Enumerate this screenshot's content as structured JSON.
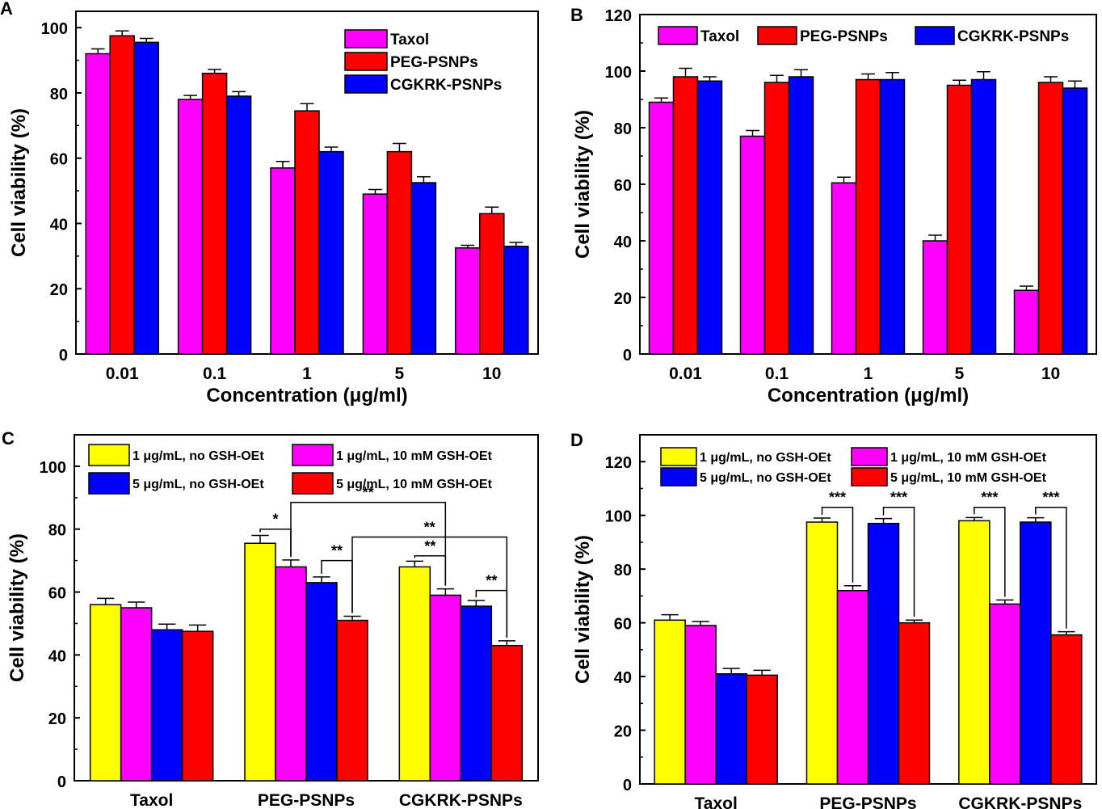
{
  "colors": {
    "taxol": "#ff00ff",
    "peg": "#ff0000",
    "cgkrk": "#0000ff",
    "yellow": "#ffff00",
    "magenta": "#ff00ff",
    "blue": "#0000ff",
    "red": "#ff0000"
  },
  "chart_data": [
    {
      "panel": "A",
      "type": "bar",
      "title": "",
      "xlabel": "Concentration (μg/ml)",
      "ylabel": "Cell viability (%)",
      "ylim": [
        0,
        105
      ],
      "yticks": [
        0,
        20,
        40,
        60,
        80,
        100
      ],
      "legend_position": "top-right",
      "legend_layout": "column",
      "categories": [
        "0.01",
        "0.1",
        "1",
        "5",
        "10"
      ],
      "series": [
        {
          "name": "Taxol",
          "color": "#ff00ff",
          "values": [
            92,
            78,
            57,
            49,
            32.5
          ],
          "errors": [
            1.5,
            1.2,
            2.0,
            1.4,
            0.8
          ]
        },
        {
          "name": "PEG-PSNPs",
          "color": "#ff0000",
          "values": [
            97.5,
            86,
            74.5,
            62,
            43
          ],
          "errors": [
            1.5,
            1.2,
            2.2,
            2.5,
            2.0
          ]
        },
        {
          "name": "CGKRK-PSNPs",
          "color": "#0000ff",
          "values": [
            95.5,
            79,
            62,
            52.5,
            33
          ],
          "errors": [
            1.2,
            1.4,
            1.4,
            1.8,
            1.2
          ]
        }
      ],
      "annotations": []
    },
    {
      "panel": "B",
      "type": "bar",
      "title": "",
      "xlabel": "Concentration (μg/ml)",
      "ylabel": "Cell viability (%)",
      "ylim": [
        0,
        120
      ],
      "yticks": [
        0,
        20,
        40,
        60,
        80,
        100,
        120
      ],
      "legend_position": "top",
      "legend_layout": "row",
      "categories": [
        "0.01",
        "0.1",
        "1",
        "5",
        "10"
      ],
      "series": [
        {
          "name": "Taxol",
          "color": "#ff00ff",
          "values": [
            89,
            77,
            60.5,
            40,
            22.5
          ],
          "errors": [
            1.5,
            2.0,
            2.0,
            2.0,
            1.5
          ]
        },
        {
          "name": "PEG-PSNPs",
          "color": "#ff0000",
          "values": [
            98,
            96,
            97,
            95,
            96
          ],
          "errors": [
            3.0,
            2.5,
            2.0,
            1.8,
            2.0
          ]
        },
        {
          "name": "CGKRK-PSNPs",
          "color": "#0000ff",
          "values": [
            96.5,
            98,
            97,
            97,
            94
          ],
          "errors": [
            1.5,
            2.5,
            2.5,
            2.8,
            2.5
          ]
        }
      ],
      "annotations": []
    },
    {
      "panel": "C",
      "type": "bar",
      "title": "",
      "xlabel": "",
      "ylabel": "Cell viability (%)",
      "ylim": [
        0,
        110
      ],
      "yticks": [
        0,
        20,
        40,
        60,
        80,
        100
      ],
      "legend_position": "top",
      "legend_layout": "grid",
      "categories": [
        "Taxol",
        "PEG-PSNPs",
        "CGKRK-PSNPs"
      ],
      "series": [
        {
          "name": "1 μg/mL, no GSH-OEt",
          "color": "#ffff00",
          "values": [
            56,
            75.5,
            68
          ],
          "errors": [
            2.0,
            2.5,
            1.8
          ]
        },
        {
          "name": "1 μg/mL, 10 mM GSH-OEt",
          "color": "#ff00ff",
          "values": [
            55,
            68,
            59
          ],
          "errors": [
            1.8,
            2.2,
            2.0
          ]
        },
        {
          "name": "5 μg/mL, no GSH-OEt",
          "color": "#0000ff",
          "values": [
            48,
            63,
            55.5
          ],
          "errors": [
            1.8,
            1.8,
            1.8
          ]
        },
        {
          "name": "5 μg/mL, 10 mM GSH-OEt",
          "color": "#ff0000",
          "values": [
            47.5,
            51,
            43
          ],
          "errors": [
            2.0,
            1.3,
            1.5
          ]
        }
      ],
      "annotations": [
        {
          "label": "*",
          "from": [
            1,
            0
          ],
          "to": [
            1,
            1
          ],
          "level": 80
        },
        {
          "label": "**",
          "from": [
            1,
            1
          ],
          "to": [
            2,
            1
          ],
          "level": 88.5
        },
        {
          "label": "**",
          "from": [
            1,
            2
          ],
          "to": [
            1,
            3
          ],
          "level": 70
        },
        {
          "label": "**",
          "from": [
            1,
            3
          ],
          "to": [
            2,
            3
          ],
          "level": 77.5
        },
        {
          "label": "**",
          "from": [
            2,
            0
          ],
          "to": [
            2,
            1
          ],
          "level": 71.5
        },
        {
          "label": "**",
          "from": [
            2,
            2
          ],
          "to": [
            2,
            3
          ],
          "level": 60.5
        }
      ]
    },
    {
      "panel": "D",
      "type": "bar",
      "title": "",
      "xlabel": "",
      "ylabel": "Cell viability (%)",
      "ylim": [
        0,
        130
      ],
      "yticks": [
        0,
        20,
        40,
        60,
        80,
        100,
        120
      ],
      "legend_position": "top",
      "legend_layout": "grid",
      "categories": [
        "Taxol",
        "PEG-PSNPs",
        "CGKRK-PSNPs"
      ],
      "series": [
        {
          "name": "1 μg/mL, no GSH-OEt",
          "color": "#ffff00",
          "values": [
            61,
            97.5,
            98
          ],
          "errors": [
            2.0,
            1.5,
            1.2
          ]
        },
        {
          "name": "1 μg/mL, 10 mM GSH-OEt",
          "color": "#ff00ff",
          "values": [
            59,
            72,
            67
          ],
          "errors": [
            1.5,
            1.8,
            1.5
          ]
        },
        {
          "name": "5 μg/mL, no GSH-OEt",
          "color": "#0000ff",
          "values": [
            41,
            97,
            97.5
          ],
          "errors": [
            2.0,
            1.8,
            1.6
          ]
        },
        {
          "name": "5 μg/mL, 10 mM GSH-OEt",
          "color": "#ff0000",
          "values": [
            40.5,
            60,
            55.5
          ],
          "errors": [
            1.8,
            1.0,
            1.2
          ]
        }
      ],
      "annotations": [
        {
          "label": "***",
          "from": [
            1,
            0
          ],
          "to": [
            1,
            1
          ],
          "level": 103
        },
        {
          "label": "***",
          "from": [
            1,
            2
          ],
          "to": [
            1,
            3
          ],
          "level": 103
        },
        {
          "label": "***",
          "from": [
            2,
            0
          ],
          "to": [
            2,
            1
          ],
          "level": 103
        },
        {
          "label": "***",
          "from": [
            2,
            2
          ],
          "to": [
            2,
            3
          ],
          "level": 103
        }
      ]
    }
  ]
}
